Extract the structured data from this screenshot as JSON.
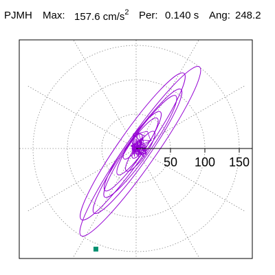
{
  "header": {
    "station": "PJMH",
    "max_label": "Max:",
    "max_value": "157.6 cm/s",
    "max_exp": "2",
    "per_label": "Per:",
    "per_value": "0.140 s",
    "ang_label": "Ang:",
    "ang_value": "248.2"
  },
  "chart_data": {
    "type": "polar",
    "title": "PJMH   Max:  157.6 cm/s2  Per:  0.140 s   Ang: 248.2",
    "radial_ticks": [
      50,
      100,
      150
    ],
    "radial_tick_labels": [
      "50",
      "100",
      "150"
    ],
    "angular_spokes_deg": [
      0,
      30,
      60,
      90,
      120,
      150,
      180,
      210,
      240,
      270,
      300,
      330
    ],
    "gridlines": "dotted",
    "rlim": [
      0,
      165
    ],
    "orbit": {
      "series_name": "",
      "color": "#9400D3",
      "peak_amplitude": 157.6,
      "peak_angle_deg": 248.2,
      "major_axis_angle_deg": 55,
      "major_half_lengths": [
        150,
        130,
        110,
        90,
        70,
        50,
        35,
        22,
        12
      ],
      "minor_half_lengths": [
        22,
        20,
        17,
        15,
        13,
        11,
        9,
        7,
        5
      ]
    },
    "peak_marker": {
      "angle_deg": 248.2,
      "r": 157.6,
      "color": "#009070"
    },
    "colors": {
      "orbit": "#9400D3",
      "marker": "#009070",
      "grid": "#888888",
      "frame": "#000000"
    }
  }
}
